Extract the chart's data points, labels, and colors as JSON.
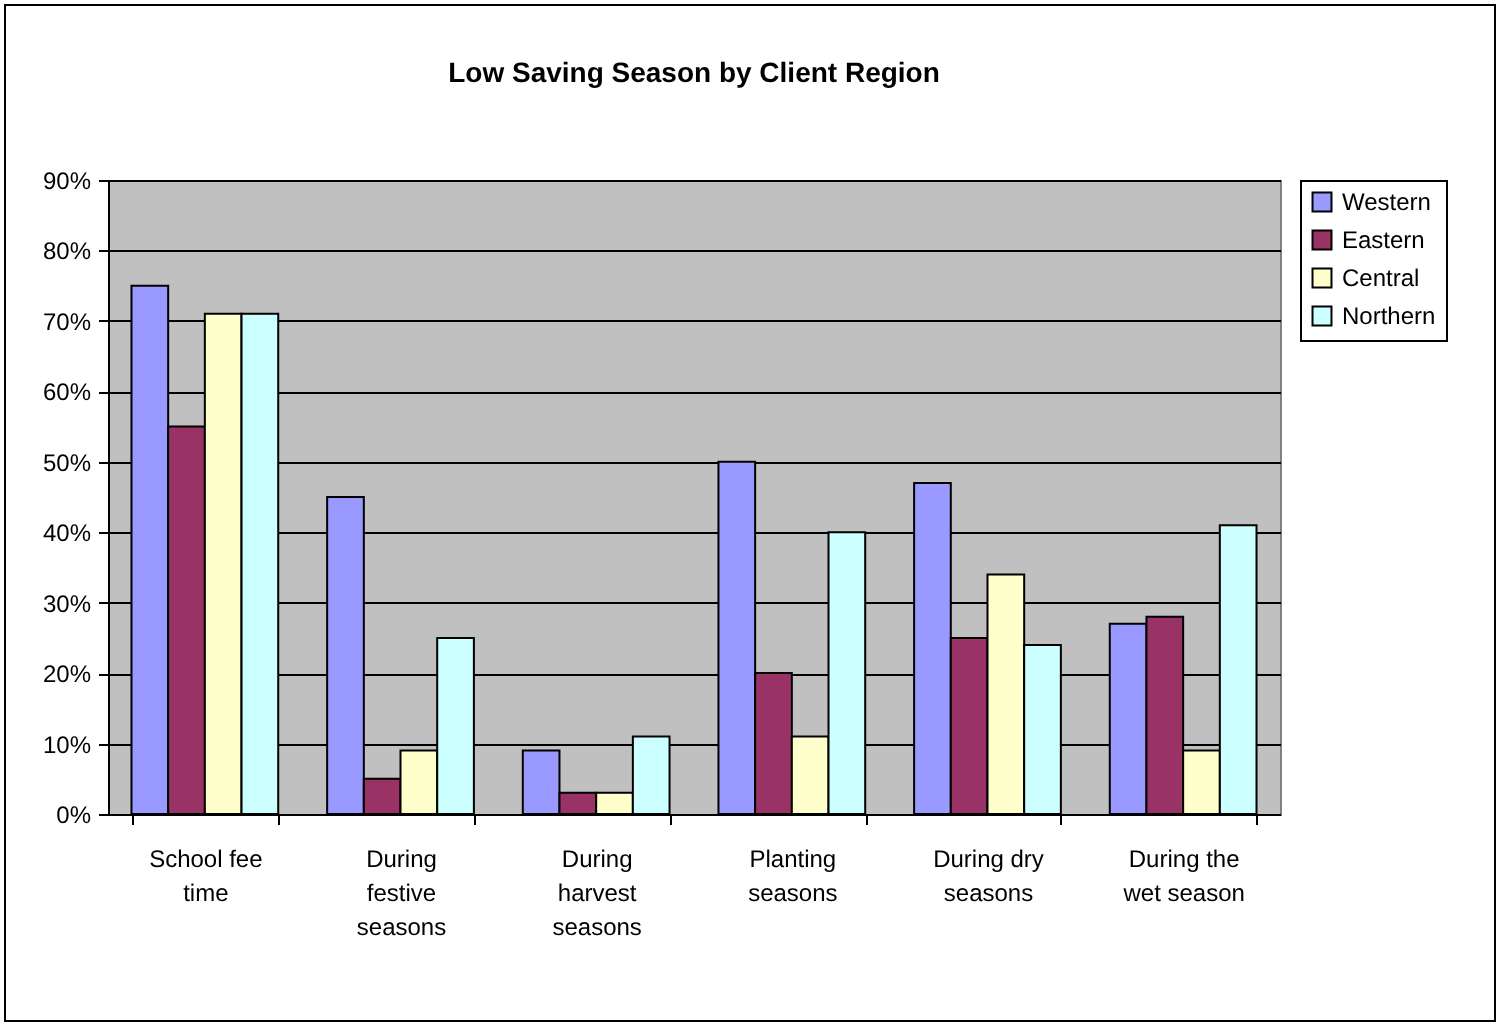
{
  "chart_data": {
    "type": "bar",
    "title": "Low Saving Season by Client Region",
    "categories": [
      "School fee time",
      "During festive seasons",
      "During harvest seasons",
      "Planting seasons",
      "During dry seasons",
      "During the wet season"
    ],
    "series": [
      {
        "name": "Western",
        "color": "#9999ff",
        "values": [
          75,
          45,
          9,
          50,
          47,
          27
        ]
      },
      {
        "name": "Eastern",
        "color": "#993366",
        "values": [
          55,
          5,
          3,
          20,
          25,
          28
        ]
      },
      {
        "name": "Central",
        "color": "#ffffcc",
        "values": [
          71,
          9,
          3,
          11,
          34,
          9
        ]
      },
      {
        "name": "Northern",
        "color": "#ccffff",
        "values": [
          71,
          25,
          11,
          40,
          24,
          41
        ]
      }
    ],
    "ylim": [
      0,
      90
    ],
    "yticks": [
      {
        "value": 0,
        "label": "0%"
      },
      {
        "value": 10,
        "label": "10%"
      },
      {
        "value": 20,
        "label": "20%"
      },
      {
        "value": 30,
        "label": "30%"
      },
      {
        "value": 40,
        "label": "40%"
      },
      {
        "value": 50,
        "label": "50%"
      },
      {
        "value": 60,
        "label": "60%"
      },
      {
        "value": 70,
        "label": "70%"
      },
      {
        "value": 80,
        "label": "80%"
      },
      {
        "value": 90,
        "label": "90%"
      }
    ],
    "grid": "y",
    "legend": "right"
  }
}
